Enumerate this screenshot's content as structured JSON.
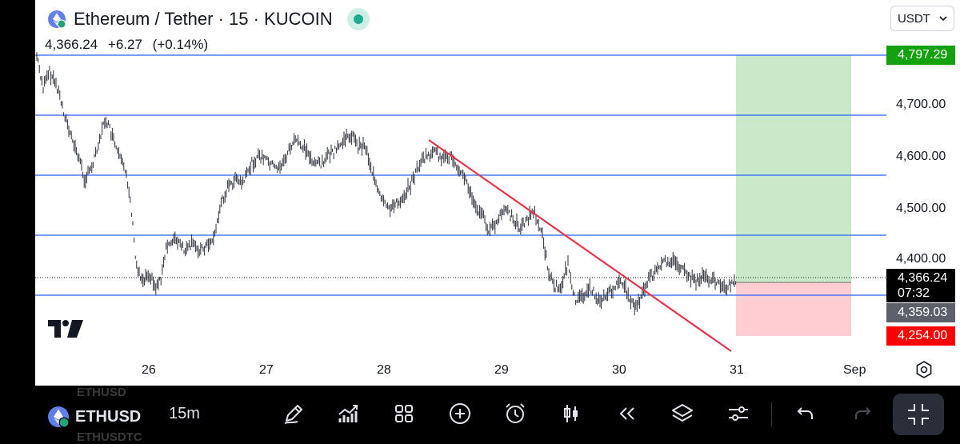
{
  "header": {
    "title": "Ethereum / Tether · 15 · KUCOIN",
    "last_price": "4,366.24",
    "change": "+6.27",
    "change_pct": "(+0.14%)"
  },
  "currency_selector": {
    "value": "USDT"
  },
  "price_axis": {
    "labels": [
      "4,700.00",
      "4,600.00",
      "4,500.00",
      "4,400.00"
    ]
  },
  "price_tags": {
    "target": "4,797.29",
    "current": "4,366.24",
    "countdown": "07:32",
    "entry": "4,359.03",
    "stop": "4,254.00"
  },
  "time_axis": {
    "labels": [
      "26",
      "27",
      "28",
      "29",
      "30",
      "31",
      "Sep"
    ]
  },
  "toolbar": {
    "symbol": "ETHUSD",
    "interval": "15m",
    "ghost_above": "ETHUSD",
    "ghost_below": "ETHUSDTC"
  },
  "colors": {
    "up_tag": "#089981",
    "down_tag": "#f23645",
    "target_tag": "#13a10e",
    "stop_tag": "#ff0000",
    "entry_tag": "#5d606b",
    "trendline": "#e8334a",
    "level_line": "#2962ff",
    "profit_zone": "#c9eac9",
    "loss_zone": "#ffcdd2"
  },
  "icons": [
    "ethereum-icon",
    "pencil-icon",
    "indicators-icon",
    "layout-grid-icon",
    "add-icon",
    "alert-clock-icon",
    "candles-icon",
    "replay-icon",
    "layers-icon",
    "settings-sliders-icon",
    "undo-icon",
    "redo-icon",
    "fullscreen-exit-icon",
    "gear-icon",
    "tradingview-logo"
  ]
}
